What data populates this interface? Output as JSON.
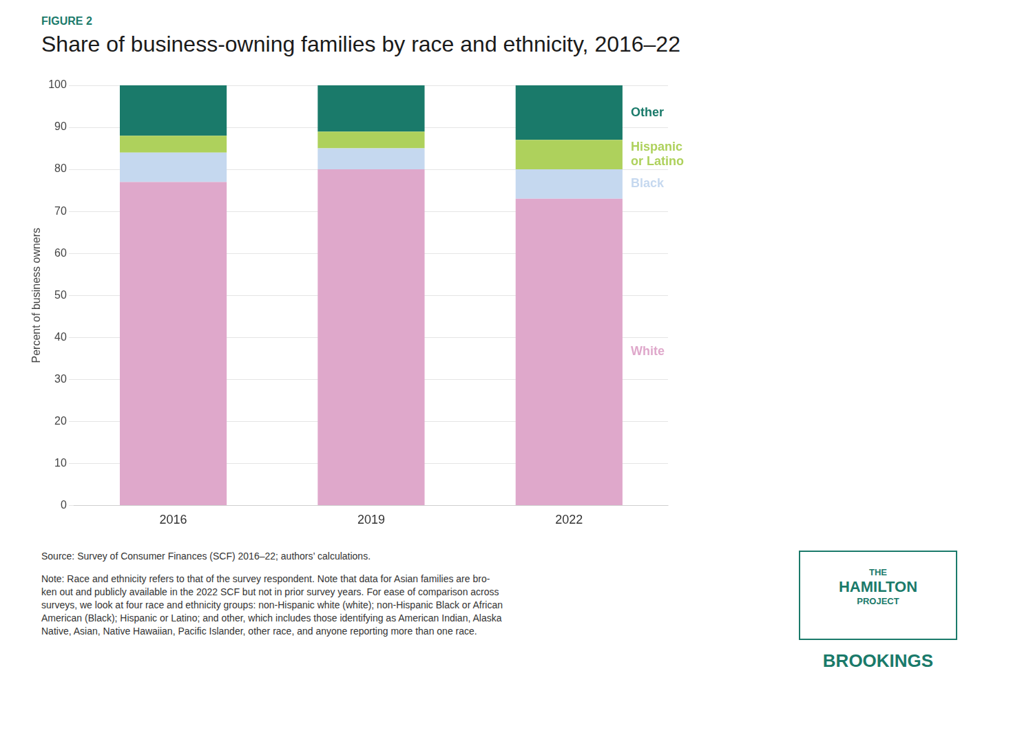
{
  "chart_data": {
    "type": "bar",
    "stacked": true,
    "title": "Share of business-owning families by race and ethnicity, 2016–22",
    "ylabel": "Percent of business owners",
    "categories": [
      "2016",
      "2019",
      "2022"
    ],
    "series": [
      {
        "name": "White",
        "color": "#dfa8cb",
        "values": [
          77,
          80,
          73
        ]
      },
      {
        "name": "Black",
        "color": "#c5d8ef",
        "values": [
          7,
          5,
          7
        ]
      },
      {
        "name": "Hispanic\nor Latino",
        "color": "#aed15c",
        "values": [
          4,
          4,
          7
        ]
      },
      {
        "name": "Other",
        "color": "#1a7a6a",
        "values": [
          12,
          11,
          13
        ]
      }
    ],
    "ylim": [
      0,
      100
    ],
    "yticks": [
      0,
      10,
      20,
      30,
      40,
      50,
      60,
      70,
      80,
      90,
      100
    ],
    "grid": true,
    "annotations": [
      {
        "text": "FIGURE 2",
        "color": "#1a7a6a"
      },
      {
        "text": "Source: Survey of Consumer Finances (SCF) 2016–22; authors’ calculations.",
        "color": "#333333"
      },
      {
        "text": "Note: Race and ethnicity refers to that of the survey respondent. Note that data for Asian families are bro-\nken out and publicly available in the 2022 SCF but not in prior survey years. For ease of comparison across\nsurveys, we look at four race and ethnicity groups: non-Hispanic white (white); non-Hispanic Black or African\nAmerican (Black); Hispanic or Latino; and other, which includes those identifying as American Indian, Alaska\nNative, Asian, Native Hawaiian, Pacific Islander, other race, and anyone reporting more than one race.",
        "color": "#333333"
      },
      {
        "text": "THE",
        "color": "#1a7a6a"
      },
      {
        "text": "HAMILTON",
        "color": "#1a7a6a"
      },
      {
        "text": "PROJECT",
        "color": "#1a7a6a"
      },
      {
        "text": "BROOKINGS",
        "color": "#1a7a6a"
      }
    ]
  }
}
